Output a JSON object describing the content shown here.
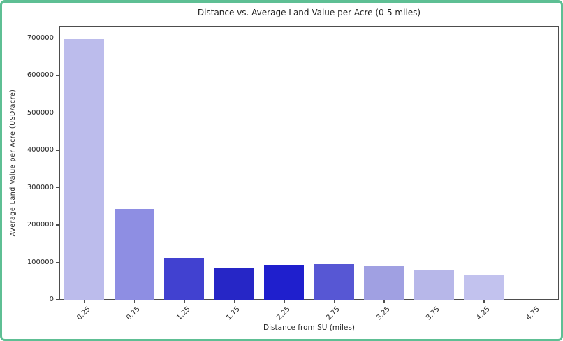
{
  "window": {
    "border_color": "#5ebf94",
    "background_color": "#ffffff",
    "spine_color": "#4d4d4d"
  },
  "chart_data": {
    "type": "bar",
    "title": "Distance vs. Average Land Value per Acre (0-5 miles)",
    "xlabel": "Distance from SU (miles)",
    "ylabel": "Average Land Value per Acre (USD/acre)",
    "categories": [
      "0.25",
      "0.75",
      "1.25",
      "1.75",
      "2.25",
      "2.75",
      "3.25",
      "3.75",
      "4.25",
      "4.75"
    ],
    "values": [
      698000,
      243000,
      112000,
      84000,
      93000,
      96000,
      90000,
      80000,
      68000,
      0
    ],
    "bar_colors": [
      "#bcbcec",
      "#8e8ee3",
      "#4141d0",
      "#2626c6",
      "#1f1fcd",
      "#5757d4",
      "#a0a0e2",
      "#b7b7e9",
      "#c2c2ee",
      "#c8c8f0"
    ],
    "yticks": [
      0,
      100000,
      200000,
      300000,
      400000,
      500000,
      600000,
      700000
    ],
    "ylim": [
      0,
      733000
    ],
    "grid": false,
    "legend": null,
    "x_tick_rotation": 45,
    "bar_width_fraction": 0.8
  }
}
